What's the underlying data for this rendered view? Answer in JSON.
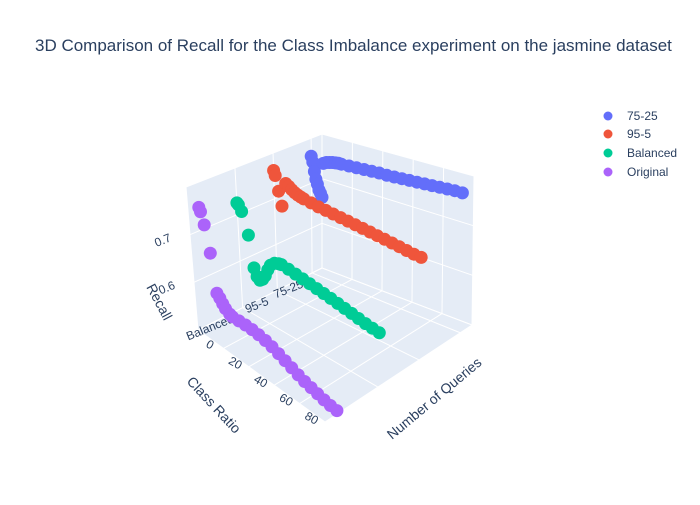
{
  "chart_data": {
    "type": "scatter3d",
    "title": "3D Comparison of Recall for the Class Imbalance experiment on the jasmine dataset",
    "axes": {
      "x": {
        "label": "Number of Queries",
        "ticks": [
          0,
          20,
          40,
          60,
          80
        ],
        "range": [
          0,
          100
        ]
      },
      "y": {
        "label": "Class Ratio",
        "ticks": [
          "75-25",
          "95-5",
          "Balanced"
        ]
      },
      "z": {
        "label": "Recall",
        "ticks": [
          0.6,
          0.7
        ],
        "range": [
          0.5,
          0.8
        ]
      }
    },
    "legend_position": "top-right",
    "series": [
      {
        "name": "75-25",
        "color": "#636efa",
        "class_index": 0,
        "points": [
          [
            0,
            0.76
          ],
          [
            1,
            0.748
          ],
          [
            2,
            0.728
          ],
          [
            3,
            0.712
          ],
          [
            4,
            0.702
          ],
          [
            5,
            0.69
          ],
          [
            6,
            0.684
          ],
          [
            7,
            0.676
          ],
          [
            8,
            0.752
          ],
          [
            10,
            0.756
          ],
          [
            12,
            0.758
          ],
          [
            14,
            0.76
          ],
          [
            16,
            0.761
          ],
          [
            18,
            0.762
          ],
          [
            20,
            0.762
          ],
          [
            25,
            0.763
          ],
          [
            30,
            0.764
          ],
          [
            35,
            0.765
          ],
          [
            40,
            0.766
          ],
          [
            45,
            0.767
          ],
          [
            50,
            0.767
          ],
          [
            55,
            0.768
          ],
          [
            60,
            0.769
          ],
          [
            65,
            0.77
          ],
          [
            70,
            0.771
          ],
          [
            75,
            0.772
          ],
          [
            80,
            0.773
          ],
          [
            85,
            0.774
          ],
          [
            90,
            0.775
          ],
          [
            95,
            0.776
          ],
          [
            100,
            0.776
          ]
        ]
      },
      {
        "name": "95-5",
        "color": "#ef553b",
        "class_index": 1,
        "points": [
          [
            0,
            0.762
          ],
          [
            1,
            0.752
          ],
          [
            3,
            0.72
          ],
          [
            5,
            0.69
          ],
          [
            8,
            0.742
          ],
          [
            10,
            0.738
          ],
          [
            12,
            0.733
          ],
          [
            14,
            0.729
          ],
          [
            16,
            0.726
          ],
          [
            18,
            0.724
          ],
          [
            20,
            0.722
          ],
          [
            25,
            0.719
          ],
          [
            30,
            0.716
          ],
          [
            35,
            0.714
          ],
          [
            40,
            0.712
          ],
          [
            45,
            0.71
          ],
          [
            50,
            0.708
          ],
          [
            55,
            0.706
          ],
          [
            60,
            0.704
          ],
          [
            65,
            0.702
          ],
          [
            70,
            0.7
          ],
          [
            75,
            0.698
          ],
          [
            80,
            0.696
          ],
          [
            85,
            0.694
          ],
          [
            90,
            0.692
          ],
          [
            95,
            0.69
          ],
          [
            100,
            0.689
          ]
        ]
      },
      {
        "name": "Balanced",
        "color": "#00cc96",
        "class_index": 2,
        "points": [
          [
            0,
            0.725
          ],
          [
            1,
            0.722
          ],
          [
            3,
            0.71
          ],
          [
            7,
            0.665
          ],
          [
            10,
            0.6
          ],
          [
            12,
            0.585
          ],
          [
            14,
            0.58
          ],
          [
            16,
            0.585
          ],
          [
            18,
            0.595
          ],
          [
            20,
            0.61
          ],
          [
            22,
            0.622
          ],
          [
            25,
            0.63
          ],
          [
            28,
            0.633
          ],
          [
            30,
            0.634
          ],
          [
            35,
            0.631
          ],
          [
            40,
            0.628
          ],
          [
            45,
            0.625
          ],
          [
            50,
            0.622
          ],
          [
            55,
            0.619
          ],
          [
            60,
            0.616
          ],
          [
            65,
            0.613
          ],
          [
            70,
            0.61
          ],
          [
            75,
            0.607
          ],
          [
            80,
            0.604
          ],
          [
            85,
            0.601
          ],
          [
            90,
            0.598
          ],
          [
            95,
            0.596
          ],
          [
            100,
            0.594
          ]
        ]
      },
      {
        "name": "Original",
        "color": "#ab63fa",
        "class_index": 3,
        "points": [
          [
            0,
            0.748
          ],
          [
            1,
            0.74
          ],
          [
            3,
            0.715
          ],
          [
            6,
            0.66
          ],
          [
            9,
            0.582
          ],
          [
            11,
            0.575
          ],
          [
            13,
            0.567
          ],
          [
            15,
            0.56
          ],
          [
            18,
            0.554
          ],
          [
            20,
            0.552
          ],
          [
            25,
            0.552
          ],
          [
            30,
            0.552
          ],
          [
            35,
            0.551
          ],
          [
            40,
            0.549
          ],
          [
            45,
            0.546
          ],
          [
            50,
            0.542
          ],
          [
            55,
            0.537
          ],
          [
            60,
            0.532
          ],
          [
            65,
            0.527
          ],
          [
            70,
            0.522
          ],
          [
            75,
            0.518
          ],
          [
            80,
            0.515
          ],
          [
            85,
            0.512
          ],
          [
            90,
            0.509
          ],
          [
            95,
            0.507
          ],
          [
            100,
            0.506
          ]
        ]
      }
    ]
  },
  "legend": {
    "items": [
      {
        "label": "75-25",
        "color": "#636efa"
      },
      {
        "label": "95-5",
        "color": "#ef553b"
      },
      {
        "label": "Balanced",
        "color": "#00cc96"
      },
      {
        "label": "Original",
        "color": "#ab63fa"
      }
    ]
  },
  "colors": {
    "scene_bg": "#e5ecf6",
    "grid": "#ffffff",
    "text": "#2a3f5f"
  }
}
